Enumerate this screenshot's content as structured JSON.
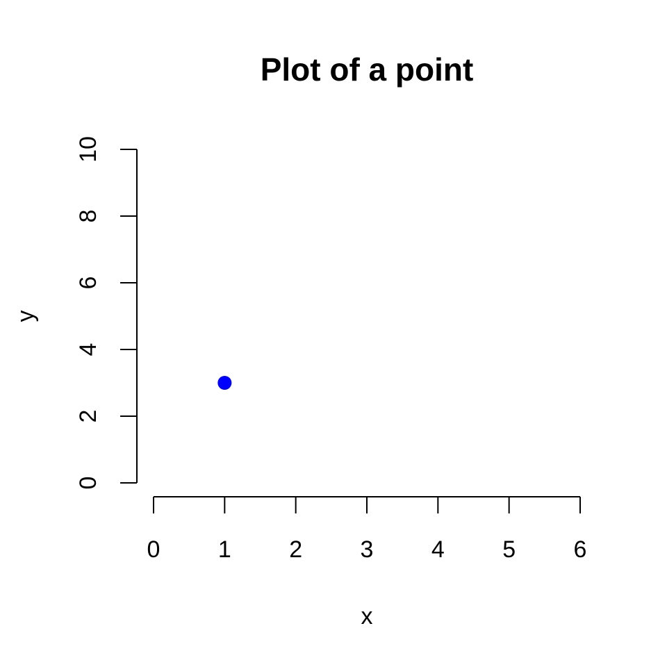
{
  "chart_data": {
    "type": "scatter",
    "title": "Plot of a point",
    "xlabel": "x",
    "ylabel": "y",
    "xlim": [
      0,
      6
    ],
    "ylim": [
      0,
      10
    ],
    "x_ticks": [
      "0",
      "1",
      "2",
      "3",
      "4",
      "5",
      "6"
    ],
    "y_ticks": [
      "0",
      "2",
      "4",
      "6",
      "8",
      "10"
    ],
    "grid": false,
    "point_color": "#0000ff",
    "points": [
      {
        "x": 1,
        "y": 3
      }
    ]
  }
}
